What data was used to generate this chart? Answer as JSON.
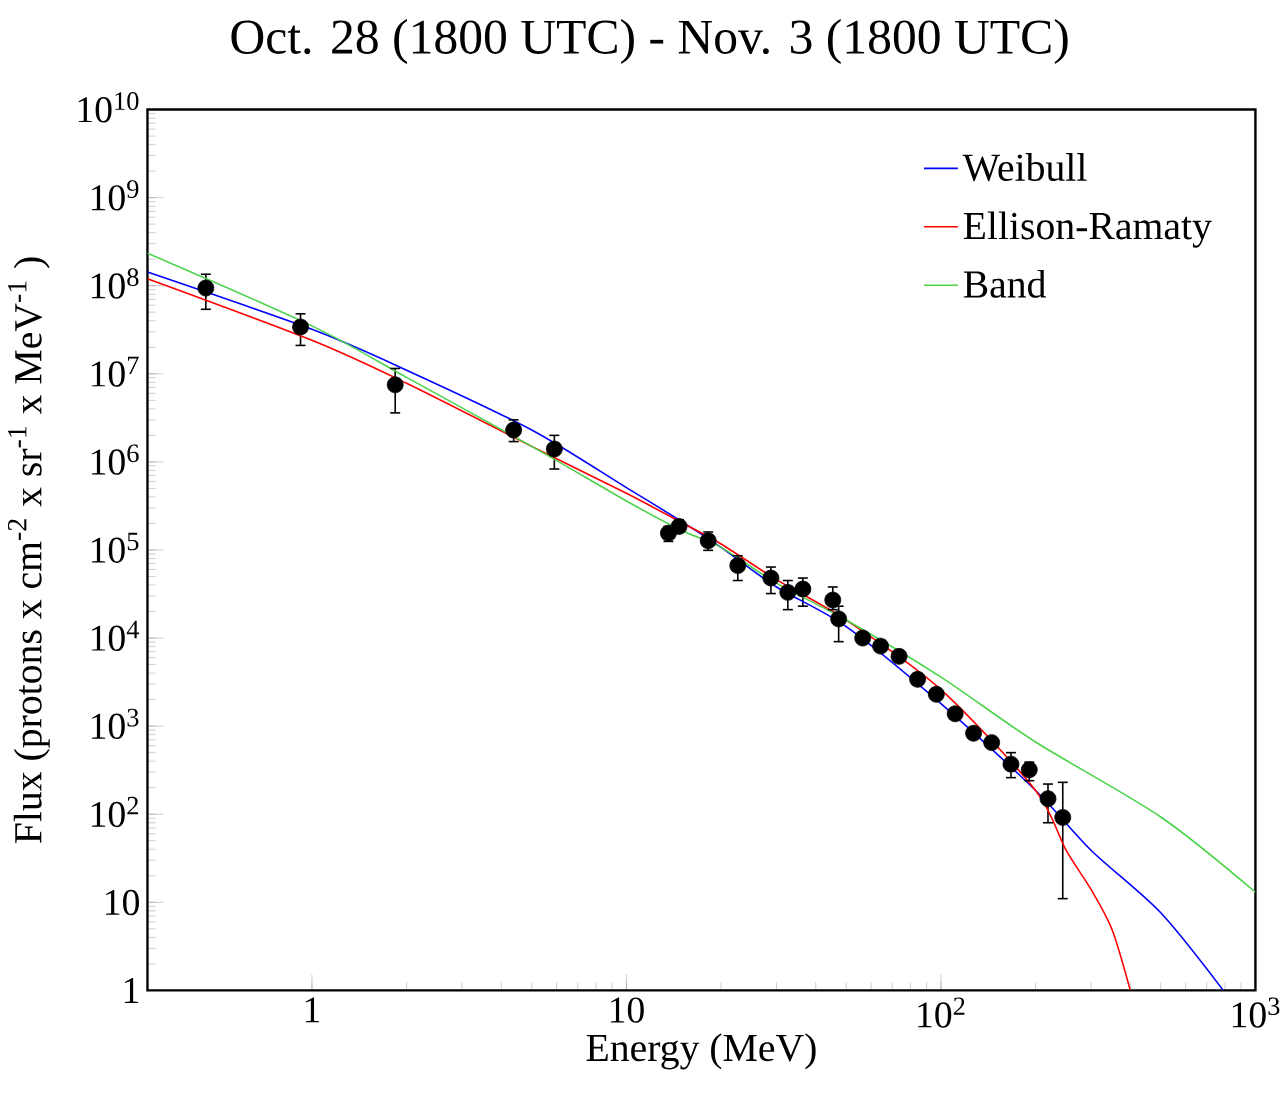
{
  "chart_data": {
    "type": "line",
    "title": "Oct. 28 (1800 UTC) - Nov. 3 (1800 UTC)",
    "xlabel": "Energy (MeV)",
    "ylabel": "Flux (protons x cm$^{-2}$ x sr$^{-1}$ x MeV$^{-1}$ )",
    "log": "xy",
    "legend": "top right",
    "grid": false,
    "xlim": [
      0.3,
      1000
    ],
    "ylim": [
      1,
      10000000000
    ],
    "xticks": [
      1,
      10,
      {
        "value": 100,
        "label": "10$^{2}$"
      },
      {
        "value": 1000,
        "label": "10$^{3}$"
      }
    ],
    "yticks": [
      1,
      10,
      {
        "value": 100,
        "label": "10$^{2}$"
      },
      {
        "value": 1000,
        "label": "10$^{3}$"
      },
      {
        "value": 10000,
        "label": "10$^{4}$"
      },
      {
        "value": 100000,
        "label": "10$^{5}$"
      },
      {
        "value": 1000000,
        "label": "10$^{6}$"
      },
      {
        "value": 10000000,
        "label": "10$^{7}$"
      },
      {
        "value": 100000000,
        "label": "10$^{8}$"
      },
      {
        "value": 1000000000,
        "label": "10$^{9}$"
      },
      {
        "value": 10000000000,
        "label": "10$^{10}$"
      }
    ],
    "series": [
      {
        "type": "scatter",
        "color": "#000000",
        "marker": "circle",
        "x": [
          0.46,
          0.92,
          1.84,
          4.38,
          5.9,
          13.6,
          14.7,
          18.2,
          22.6,
          28.8,
          32.6,
          36.4,
          45.3,
          47.3,
          56.4,
          64.3,
          73.6,
          84.3,
          96.7,
          111,
          127,
          145,
          167,
          191,
          219,
          244
        ],
        "values": [
          94000000,
          34000000,
          7500000,
          2300000,
          1400000,
          155000,
          185000,
          127000,
          66500,
          48000,
          33000,
          36000,
          27000,
          16500,
          10000,
          8100,
          6200,
          3400,
          2300,
          1380,
          830,
          650,
          370,
          320,
          150,
          92
        ],
        "errors": [
          [
            54000000,
            135000000
          ],
          [
            21000000,
            48000000
          ],
          [
            3600000,
            11500000
          ],
          [
            1700000,
            3000000
          ],
          [
            830000,
            2000000
          ],
          [
            125000,
            185000
          ],
          [
            160000,
            220000
          ],
          [
            99000,
            160000
          ],
          [
            45000,
            86000
          ],
          [
            32000,
            64000
          ],
          [
            21000,
            45000
          ],
          [
            23000,
            48000
          ],
          [
            21000,
            38000
          ],
          [
            9100,
            23000
          ],
          null,
          null,
          null,
          null,
          null,
          null,
          null,
          null,
          [
            260,
            500
          ],
          [
            240,
            390
          ],
          [
            80,
            220
          ],
          [
            11,
            230
          ]
        ]
      },
      {
        "name": "Weibull",
        "type": "line",
        "color": "#0000ff",
        "x": [
          0.3,
          1,
          2,
          5,
          10,
          15,
          20,
          30,
          50,
          100,
          200,
          300,
          500,
          790
        ],
        "values": [
          143000000,
          32000000,
          11000000,
          2300000,
          510000,
          210000,
          107000,
          38000,
          13500,
          1800,
          186,
          39,
          7.6,
          1
        ]
      },
      {
        "name": "Ellison-Ramaty",
        "type": "line",
        "color": "#ff0000",
        "x": [
          0.3,
          1,
          2,
          5,
          10,
          15,
          20,
          30,
          50,
          100,
          200,
          250,
          300,
          350,
          400
        ],
        "values": [
          120000000,
          24000000,
          7800000,
          1500000,
          440000,
          204000,
          117000,
          46000,
          16000,
          2600,
          186,
          39,
          14,
          4.9,
          1
        ]
      },
      {
        "name": "Band",
        "type": "line",
        "color": "#4cd34c",
        "x": [
          0.3,
          1,
          2,
          5,
          10,
          15,
          20,
          30,
          50,
          100,
          200,
          500,
          1000
        ],
        "values": [
          234000000,
          35000000,
          9100000,
          1500000,
          360000,
          166000,
          107000,
          42000,
          16000,
          3600,
          660,
          93,
          13
        ]
      }
    ]
  }
}
